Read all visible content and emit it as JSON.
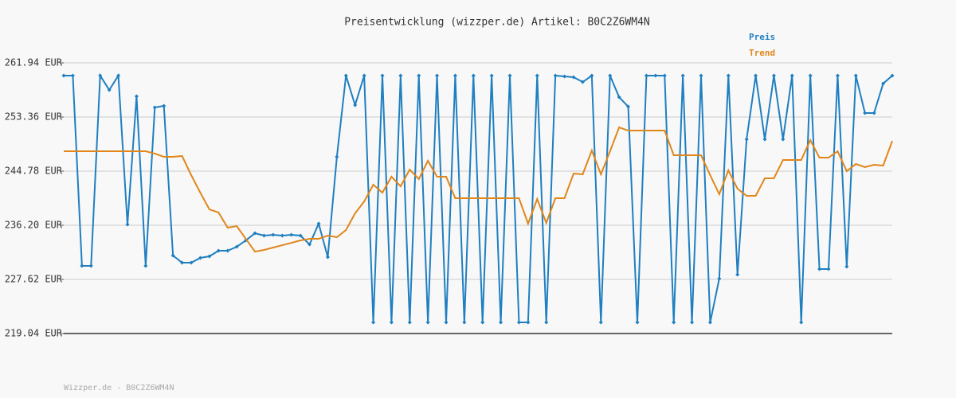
{
  "chart_data": {
    "type": "line",
    "title": "Preisentwicklung (wizzper.de) Artikel: B0C2Z6WM4N",
    "footer": "Wizzper.de - B0C2Z6WM4N",
    "ylim": [
      219.04,
      261.94
    ],
    "yticks": [
      {
        "value": 219.04,
        "label": "219.04 EUR"
      },
      {
        "value": 227.62,
        "label": "227.62 EUR"
      },
      {
        "value": 236.2,
        "label": "236.20 EUR"
      },
      {
        "value": 244.78,
        "label": "244.78 EUR"
      },
      {
        "value": 253.36,
        "label": "253.36 EUR"
      },
      {
        "value": 261.94,
        "label": "261.94 EUR"
      }
    ],
    "grid": true,
    "series": [
      {
        "name": "Preis",
        "color": "#1f7fc0",
        "markers": true,
        "values": [
          259.92,
          259.92,
          229.76,
          229.76,
          259.92,
          257.65,
          259.92,
          236.33,
          256.64,
          229.76,
          254.87,
          255.13,
          231.4,
          230.27,
          230.27,
          231.03,
          231.28,
          232.16,
          232.16,
          232.79,
          233.8,
          234.94,
          234.56,
          234.69,
          234.56,
          234.69,
          234.56,
          233.17,
          236.45,
          231.15,
          247.05,
          259.92,
          255.25,
          259.92,
          220.8,
          259.92,
          220.8,
          259.92,
          220.8,
          259.92,
          220.8,
          259.92,
          220.8,
          259.92,
          220.8,
          259.92,
          220.8,
          259.92,
          220.8,
          259.92,
          220.8,
          220.8,
          259.92,
          220.8,
          259.92,
          259.79,
          259.67,
          258.91,
          259.92,
          220.8,
          259.92,
          256.51,
          255.0,
          220.8,
          259.92,
          259.92,
          259.92,
          220.8,
          259.92,
          220.8,
          259.92,
          220.8,
          227.75,
          259.92,
          228.38,
          249.83,
          259.92,
          249.83,
          259.92,
          249.83,
          259.92,
          220.8,
          259.92,
          229.26,
          229.26,
          259.92,
          229.64,
          259.92,
          253.99,
          253.99,
          258.66,
          259.92
        ]
      },
      {
        "name": "Trend",
        "color": "#e0861a",
        "markers": false,
        "values": [
          247.93,
          247.93,
          247.93,
          247.93,
          247.93,
          247.93,
          247.93,
          247.93,
          247.93,
          247.93,
          247.56,
          247.05,
          247.05,
          247.18,
          244.15,
          241.37,
          238.72,
          238.22,
          235.82,
          236.07,
          234.05,
          232.03,
          232.29,
          232.67,
          233.04,
          233.42,
          233.8,
          234.05,
          234.05,
          234.56,
          234.31,
          235.44,
          238.09,
          239.98,
          242.63,
          241.37,
          243.9,
          242.38,
          245.03,
          243.52,
          246.42,
          243.9,
          243.9,
          240.49,
          240.49,
          240.49,
          240.49,
          240.49,
          240.49,
          240.49,
          240.49,
          236.45,
          240.36,
          236.58,
          240.49,
          240.49,
          244.4,
          244.27,
          248.06,
          244.27,
          247.93,
          251.72,
          251.21,
          251.21,
          251.21,
          251.21,
          251.21,
          247.3,
          247.3,
          247.3,
          247.3,
          244.15,
          241.12,
          244.9,
          242.0,
          240.87,
          240.87,
          243.64,
          243.64,
          246.55,
          246.55,
          246.55,
          249.7,
          246.92,
          246.92,
          247.93,
          244.78,
          245.91,
          245.41,
          245.79,
          245.66,
          249.57
        ]
      }
    ]
  }
}
